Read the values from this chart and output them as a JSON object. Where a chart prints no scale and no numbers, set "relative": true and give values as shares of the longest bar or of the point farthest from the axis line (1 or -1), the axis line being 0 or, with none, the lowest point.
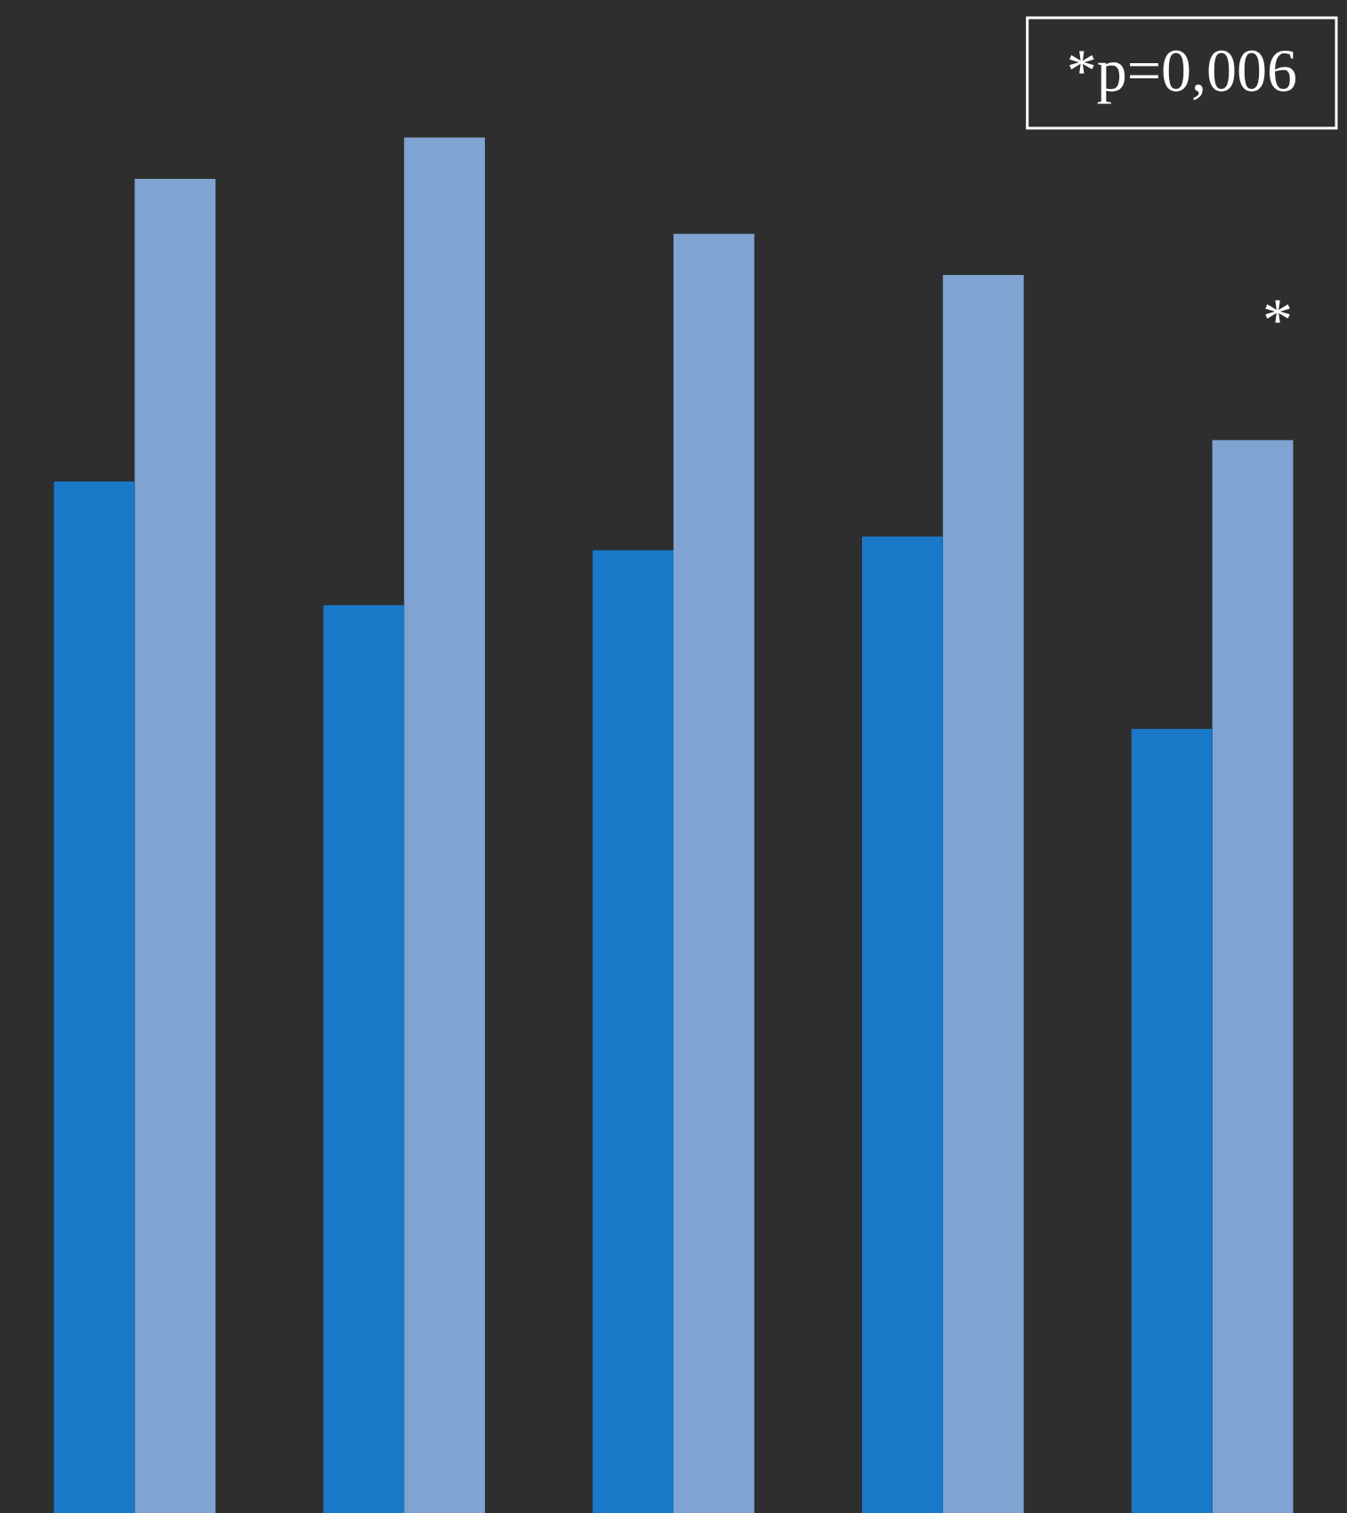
{
  "chart_data": {
    "type": "bar",
    "relative": true,
    "categories": [
      null,
      null,
      null,
      null,
      null
    ],
    "series": [
      {
        "color": "#1a78c8",
        "values": [
          0.75,
          0.66,
          0.7,
          0.71,
          0.57
        ]
      },
      {
        "color": "#7fa4d2",
        "values": [
          0.97,
          1,
          0.93,
          0.9,
          0.78
        ]
      }
    ],
    "annotations": [
      "*p=0,006",
      "*"
    ],
    "legend": false
  }
}
